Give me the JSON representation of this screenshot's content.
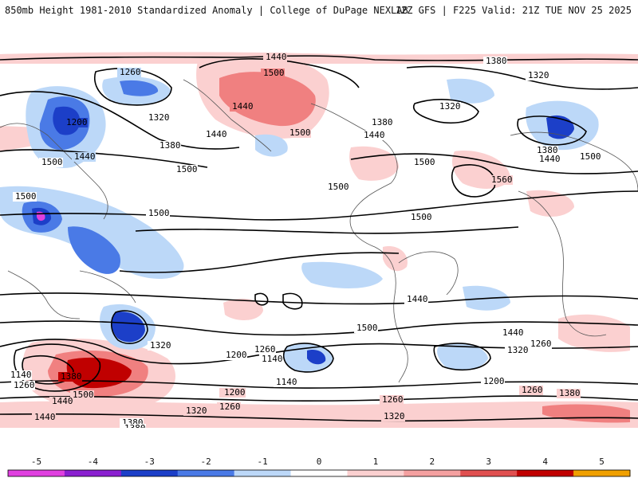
{
  "header": {
    "left": "850mb Height 1981-2010 Standardized Anomaly | College of DuPage NEXLAB",
    "right": "12Z GFS | F225 Valid: 21Z TUE NOV 25 2025"
  },
  "map": {
    "contour_labels": [
      "1440",
      "1380",
      "1320",
      "1260",
      "1500",
      "1200",
      "1440",
      "1320",
      "1380",
      "1440",
      "1500",
      "1500",
      "1500",
      "1500",
      "1560",
      "1380",
      "1380",
      "1500",
      "1500",
      "1500",
      "1440",
      "1440",
      "1440",
      "1440",
      "1320",
      "1500",
      "1500",
      "1200",
      "1260",
      "1140",
      "1260",
      "1140",
      "1380",
      "1500",
      "1440",
      "1440",
      "1320",
      "1260",
      "1200",
      "1380",
      "1260",
      "1320",
      "1500",
      "1200",
      "1260",
      "1380",
      "1140",
      "1320",
      "1440",
      "1260",
      "1260",
      "1320",
      "1380"
    ],
    "colors": {
      "neg5": "#e040e0",
      "neg4": "#8a1fd0",
      "neg3": "#1c3fc8",
      "neg2": "#4a7ae6",
      "neg1": "#bcd8f8",
      "pos1": "#fbd0d0",
      "pos2": "#f4a0a0",
      "pos3": "#e05050",
      "pos4": "#c00000",
      "pos5": "#f0a000"
    }
  },
  "colorbar": {
    "labels": [
      "-5",
      "-4",
      "-3",
      "-2",
      "-1",
      "0",
      "1",
      "2",
      "3",
      "4",
      "5"
    ],
    "colors": [
      "#e040e0",
      "#8a1fd0",
      "#1c3fc8",
      "#4a7ae6",
      "#bcd8f8",
      "#ffffff",
      "#fbd0d0",
      "#f4a0a0",
      "#e05050",
      "#c00000",
      "#f0a000"
    ]
  }
}
